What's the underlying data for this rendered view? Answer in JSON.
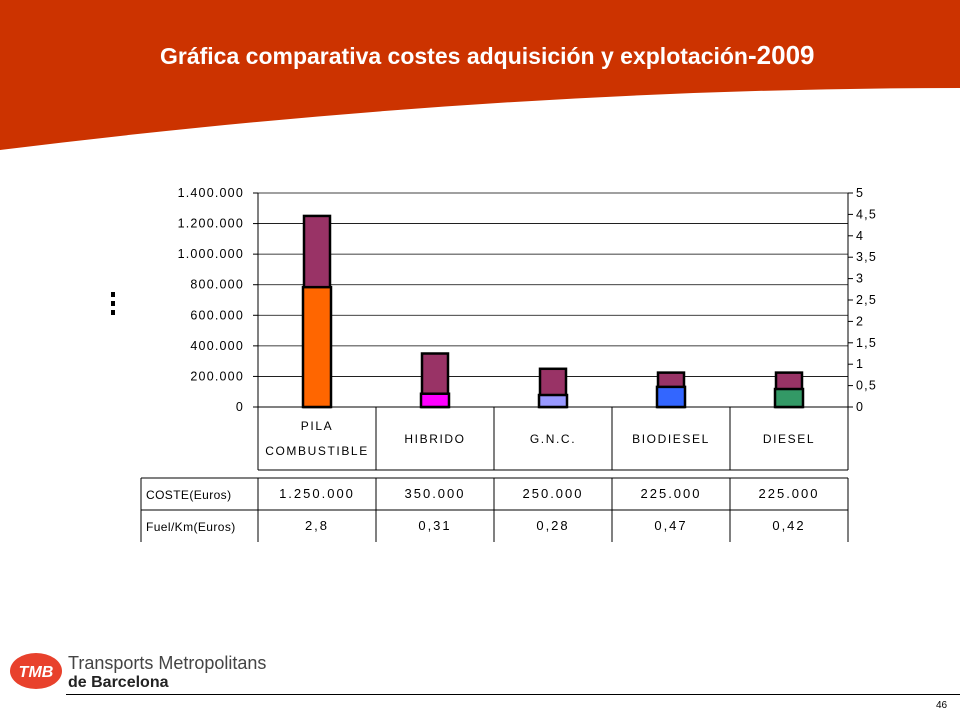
{
  "header": {
    "title": "Gráfica comparativa costes adquisición y explotación",
    "year": "-2009",
    "band_color": "#CC3300"
  },
  "chart_data": {
    "type": "bar",
    "categories": [
      [
        "PILA",
        "COMBUSTIBLE"
      ],
      [
        "HIBRIDO"
      ],
      [
        "G.N.C."
      ],
      [
        "BIODIESEL"
      ],
      [
        "DIESEL"
      ]
    ],
    "series": [
      {
        "axis": "left",
        "values": [
          1250000,
          350000,
          250000,
          225000,
          225000
        ],
        "color": "#993366"
      },
      {
        "axis": "right",
        "values": [
          2.8,
          0.31,
          0.28,
          0.47,
          0.42
        ],
        "colors": [
          "#FF6600",
          "#FF00FF",
          "#9999FF",
          "#3366FF",
          "#339966"
        ]
      }
    ],
    "y_left": {
      "ylim": [
        0,
        1400000
      ],
      "ticks": [
        "0",
        "200.000",
        "400.000",
        "600.000",
        "800.000",
        "1.000.000",
        "1.200.000",
        "1.400.000"
      ]
    },
    "y_right": {
      "ylim": [
        0,
        5
      ],
      "ticks": [
        "0",
        "0,5",
        "1",
        "1,5",
        "2",
        "2,5",
        "3",
        "3,5",
        "4",
        "4,5",
        "5"
      ]
    },
    "grid": true,
    "table": {
      "rows": [
        {
          "label": "COSTE(Euros)",
          "values": [
            "1.250.000",
            "350.000",
            "250.000",
            "225.000",
            "225.000"
          ]
        },
        {
          "label": "Fuel/Km(Euros)",
          "values": [
            "2,8",
            "0,31",
            "0,28",
            "0,47",
            "0,42"
          ]
        }
      ]
    }
  },
  "footer": {
    "logo_badge": "TMB",
    "logo_line1": "Transports Metropolitans",
    "logo_line2": "de Barcelona",
    "page_number": "46",
    "badge_color": "#E8412C"
  }
}
